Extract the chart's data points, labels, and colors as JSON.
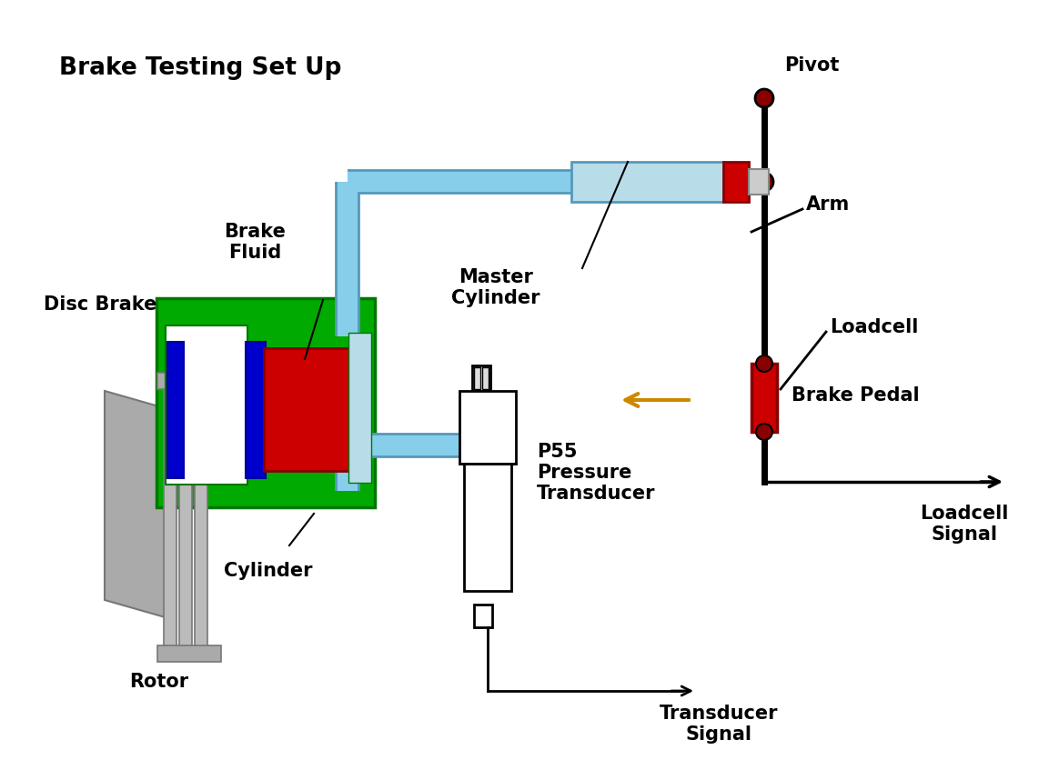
{
  "title": "Brake Testing Set Up",
  "bg_color": "#ffffff",
  "title_fontsize": 19,
  "label_fontsize": 15,
  "colors": {
    "green": "#00aa00",
    "dark_green": "#007700",
    "red": "#cc0000",
    "dark_red": "#880000",
    "blue": "#0000cc",
    "dark_blue": "#000099",
    "light_blue": "#add8e6",
    "pipe_blue": "#87ceeb",
    "pipe_edge": "#5599bb",
    "gray": "#aaaaaa",
    "light_gray": "#bbbbbb",
    "dark_gray": "#777777",
    "black": "#000000",
    "white": "#ffffff",
    "orange": "#cc8800",
    "light_cyan": "#b8dde8"
  },
  "labels": {
    "title": "Brake Testing Set Up",
    "disc_brake": "Disc Brake",
    "brake_fluid": "Brake\nFluid",
    "master_cylinder": "Master\nCylinder",
    "cylinder": "Cylinder",
    "rotor": "Rotor",
    "p55": "P55\nPressure\nTransducer",
    "transducer_signal": "Transducer\nSignal",
    "pivot": "Pivot",
    "arm": "Arm",
    "loadcell": "Loadcell",
    "brake_pedal": "Brake Pedal",
    "loadcell_signal": "Loadcell\nSignal"
  }
}
